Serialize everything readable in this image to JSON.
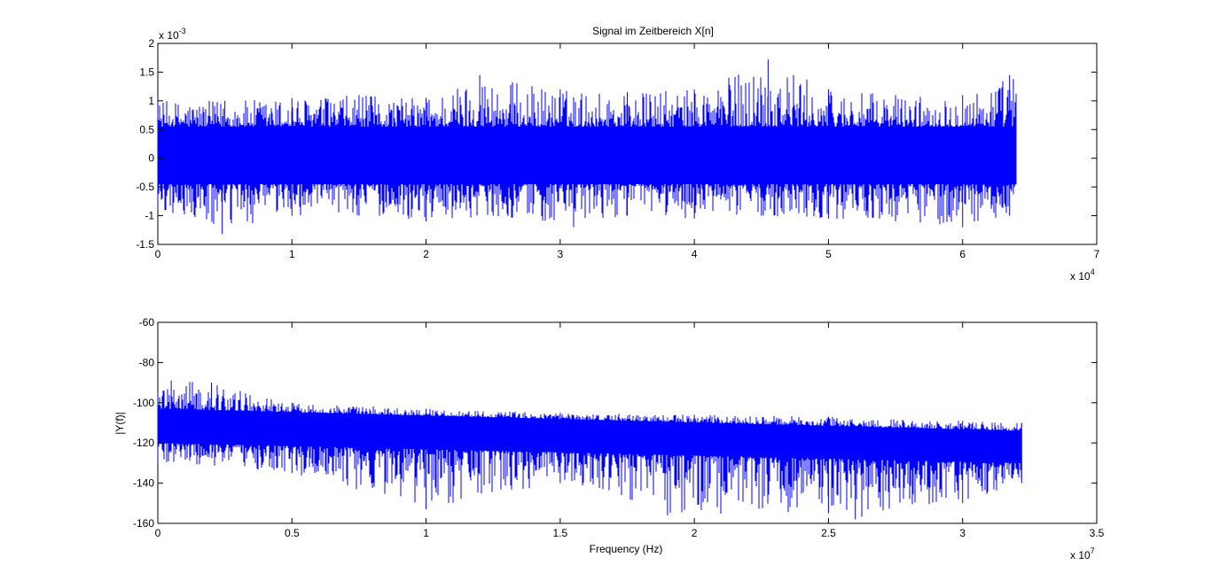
{
  "chart_data": [
    {
      "type": "line",
      "title": "Signal im Zeitbereich X[n]",
      "xlabel": "",
      "ylabel": "",
      "x_exponent_label": "x 10",
      "x_exponent": "4",
      "y_exponent_label": "x 10",
      "y_exponent": "-3",
      "xlim": [
        0,
        7
      ],
      "ylim": [
        -1.5,
        2
      ],
      "xticks": [
        "0",
        "1",
        "2",
        "3",
        "4",
        "5",
        "6",
        "7"
      ],
      "yticks": [
        "-1.5",
        "-1",
        "-0.5",
        "0",
        "0.5",
        "1",
        "1.5",
        "2"
      ],
      "line_color": "#0000ff",
      "grid": false,
      "series": [
        {
          "x_range": [
            0,
            6.4
          ],
          "envelope_upper": [
            {
              "x": 0.0,
              "y": 1.0
            },
            {
              "x": 0.5,
              "y": 1.0
            },
            {
              "x": 1.0,
              "y": 1.05
            },
            {
              "x": 1.5,
              "y": 1.1
            },
            {
              "x": 2.0,
              "y": 1.05
            },
            {
              "x": 2.4,
              "y": 1.45
            },
            {
              "x": 3.0,
              "y": 1.2
            },
            {
              "x": 3.5,
              "y": 1.15
            },
            {
              "x": 4.0,
              "y": 1.2
            },
            {
              "x": 4.55,
              "y": 1.72
            },
            {
              "x": 5.0,
              "y": 1.2
            },
            {
              "x": 5.5,
              "y": 1.1
            },
            {
              "x": 6.0,
              "y": 1.1
            },
            {
              "x": 6.35,
              "y": 1.45
            }
          ],
          "envelope_lower": [
            {
              "x": 0.0,
              "y": -0.9
            },
            {
              "x": 0.48,
              "y": -1.32
            },
            {
              "x": 1.0,
              "y": -1.0
            },
            {
              "x": 1.5,
              "y": -1.0
            },
            {
              "x": 2.0,
              "y": -1.1
            },
            {
              "x": 2.5,
              "y": -1.0
            },
            {
              "x": 3.1,
              "y": -1.2
            },
            {
              "x": 3.5,
              "y": -1.0
            },
            {
              "x": 4.0,
              "y": -1.05
            },
            {
              "x": 4.5,
              "y": -1.0
            },
            {
              "x": 5.0,
              "y": -1.05
            },
            {
              "x": 5.5,
              "y": -1.1
            },
            {
              "x": 6.0,
              "y": -1.2
            },
            {
              "x": 6.35,
              "y": -1.0
            }
          ],
          "band": {
            "upper": 0.55,
            "lower": -0.45
          }
        }
      ]
    },
    {
      "type": "line",
      "title": "",
      "xlabel": "Frequency (Hz)",
      "ylabel": "|Y(f)|",
      "x_exponent_label": "x 10",
      "x_exponent": "7",
      "xlim": [
        0,
        3.5
      ],
      "ylim": [
        -160,
        -60
      ],
      "xticks": [
        "0",
        "0.5",
        "1",
        "1.5",
        "2",
        "2.5",
        "3",
        "3.5"
      ],
      "yticks": [
        "-60",
        "-80",
        "-100",
        "-120",
        "-140",
        "-160"
      ],
      "line_color": "#0000ff",
      "grid": false,
      "series": [
        {
          "x_range": [
            0,
            3.22
          ],
          "envelope_upper": [
            {
              "x": 0.0,
              "y": -95
            },
            {
              "x": 0.05,
              "y": -89
            },
            {
              "x": 0.2,
              "y": -90
            },
            {
              "x": 0.5,
              "y": -100
            },
            {
              "x": 1.0,
              "y": -103
            },
            {
              "x": 1.5,
              "y": -105
            },
            {
              "x": 2.0,
              "y": -106
            },
            {
              "x": 2.5,
              "y": -107
            },
            {
              "x": 3.0,
              "y": -109
            },
            {
              "x": 3.22,
              "y": -110
            }
          ],
          "envelope_lower": [
            {
              "x": 0.0,
              "y": -130
            },
            {
              "x": 0.5,
              "y": -135
            },
            {
              "x": 1.0,
              "y": -153
            },
            {
              "x": 1.5,
              "y": -140
            },
            {
              "x": 1.9,
              "y": -156
            },
            {
              "x": 2.5,
              "y": -155
            },
            {
              "x": 2.6,
              "y": -158
            },
            {
              "x": 3.0,
              "y": -150
            },
            {
              "x": 3.22,
              "y": -140
            }
          ],
          "band": {
            "upper_start": -103,
            "upper_end": -114,
            "lower_start": -120,
            "lower_end": -130
          }
        }
      ]
    }
  ]
}
